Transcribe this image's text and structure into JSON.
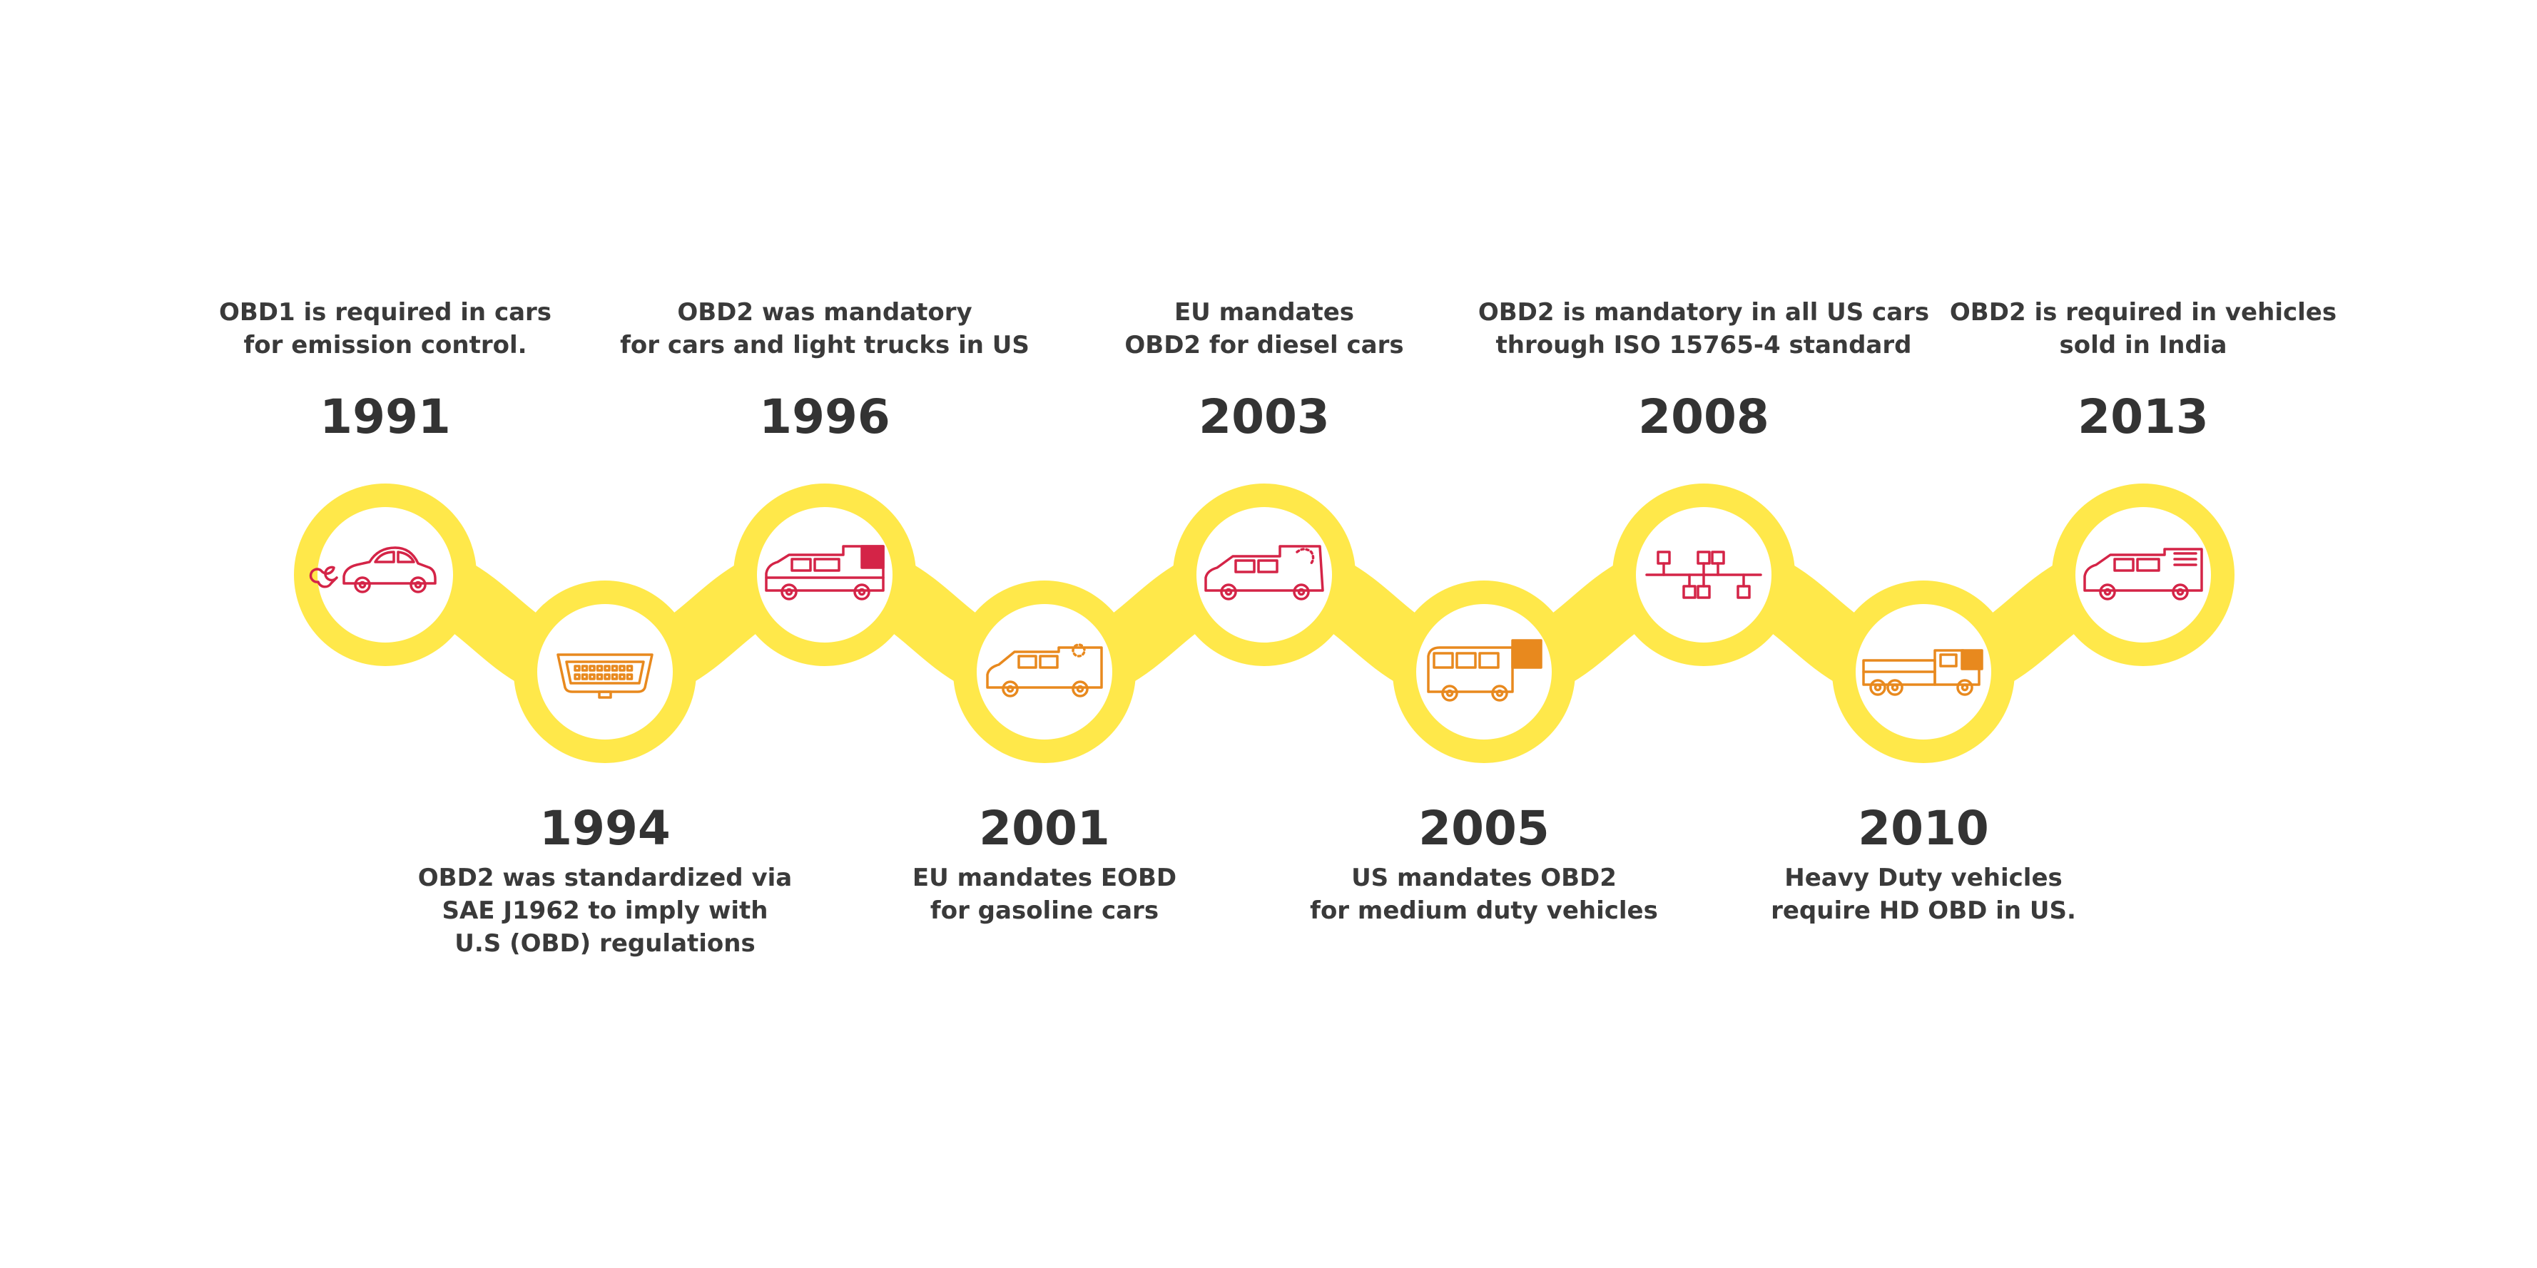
{
  "colors": {
    "track": "#FFE84A",
    "icon_red": "#D42447",
    "icon_orange": "#E8891E",
    "text": "#333333"
  },
  "milestones": [
    {
      "year": "1991",
      "lines": [
        "OBD1 is required in cars",
        "for emission control."
      ],
      "icon": "emission-car-icon",
      "row": "top"
    },
    {
      "year": "1994",
      "lines": [
        "OBD2 was standardized via",
        "SAE J1962 to imply with",
        "U.S (OBD) regulations"
      ],
      "icon": "obd-connector-icon",
      "row": "bottom"
    },
    {
      "year": "1996",
      "lines": [
        "OBD2 was mandatory",
        "for cars and light trucks in US"
      ],
      "icon": "light-truck-icon",
      "row": "top"
    },
    {
      "year": "2001",
      "lines": [
        "EU mandates EOBD",
        "for gasoline cars"
      ],
      "icon": "gasoline-car-icon",
      "row": "bottom"
    },
    {
      "year": "2003",
      "lines": [
        "EU mandates",
        "OBD2 for diesel cars"
      ],
      "icon": "diesel-car-icon",
      "row": "top"
    },
    {
      "year": "2005",
      "lines": [
        "US mandates OBD2",
        "for medium duty vehicles"
      ],
      "icon": "medium-duty-van-icon",
      "row": "bottom"
    },
    {
      "year": "2008",
      "lines": [
        "OBD2 is mandatory in all US cars",
        "through ISO 15765-4 standard"
      ],
      "icon": "can-network-icon",
      "row": "top"
    },
    {
      "year": "2010",
      "lines": [
        "Heavy Duty vehicles",
        "require HD OBD in US."
      ],
      "icon": "heavy-truck-icon",
      "row": "bottom"
    },
    {
      "year": "2013",
      "lines": [
        "OBD2 is required in vehicles",
        "sold in India"
      ],
      "icon": "india-vehicle-icon",
      "row": "top"
    }
  ]
}
